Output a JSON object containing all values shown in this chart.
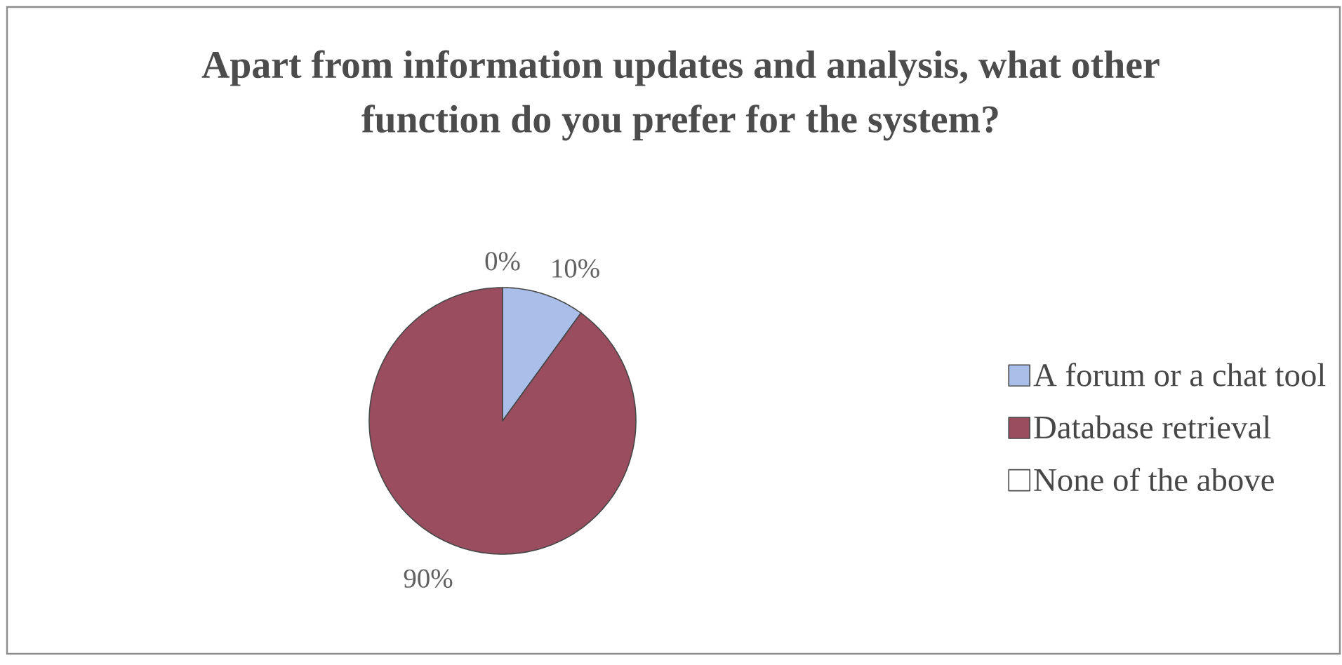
{
  "chart_data": {
    "type": "pie",
    "title": "Apart from information updates and analysis, what other function do you prefer for the system?",
    "categories": [
      "A forum or a chat tool",
      "Database retrieval",
      "None of the above"
    ],
    "values": [
      10,
      90,
      0
    ],
    "colors": [
      "#a9bfe9",
      "#9b4d60",
      "#ffffff"
    ],
    "value_labels": [
      "10%",
      "90%",
      "0%"
    ],
    "legend": "right"
  }
}
